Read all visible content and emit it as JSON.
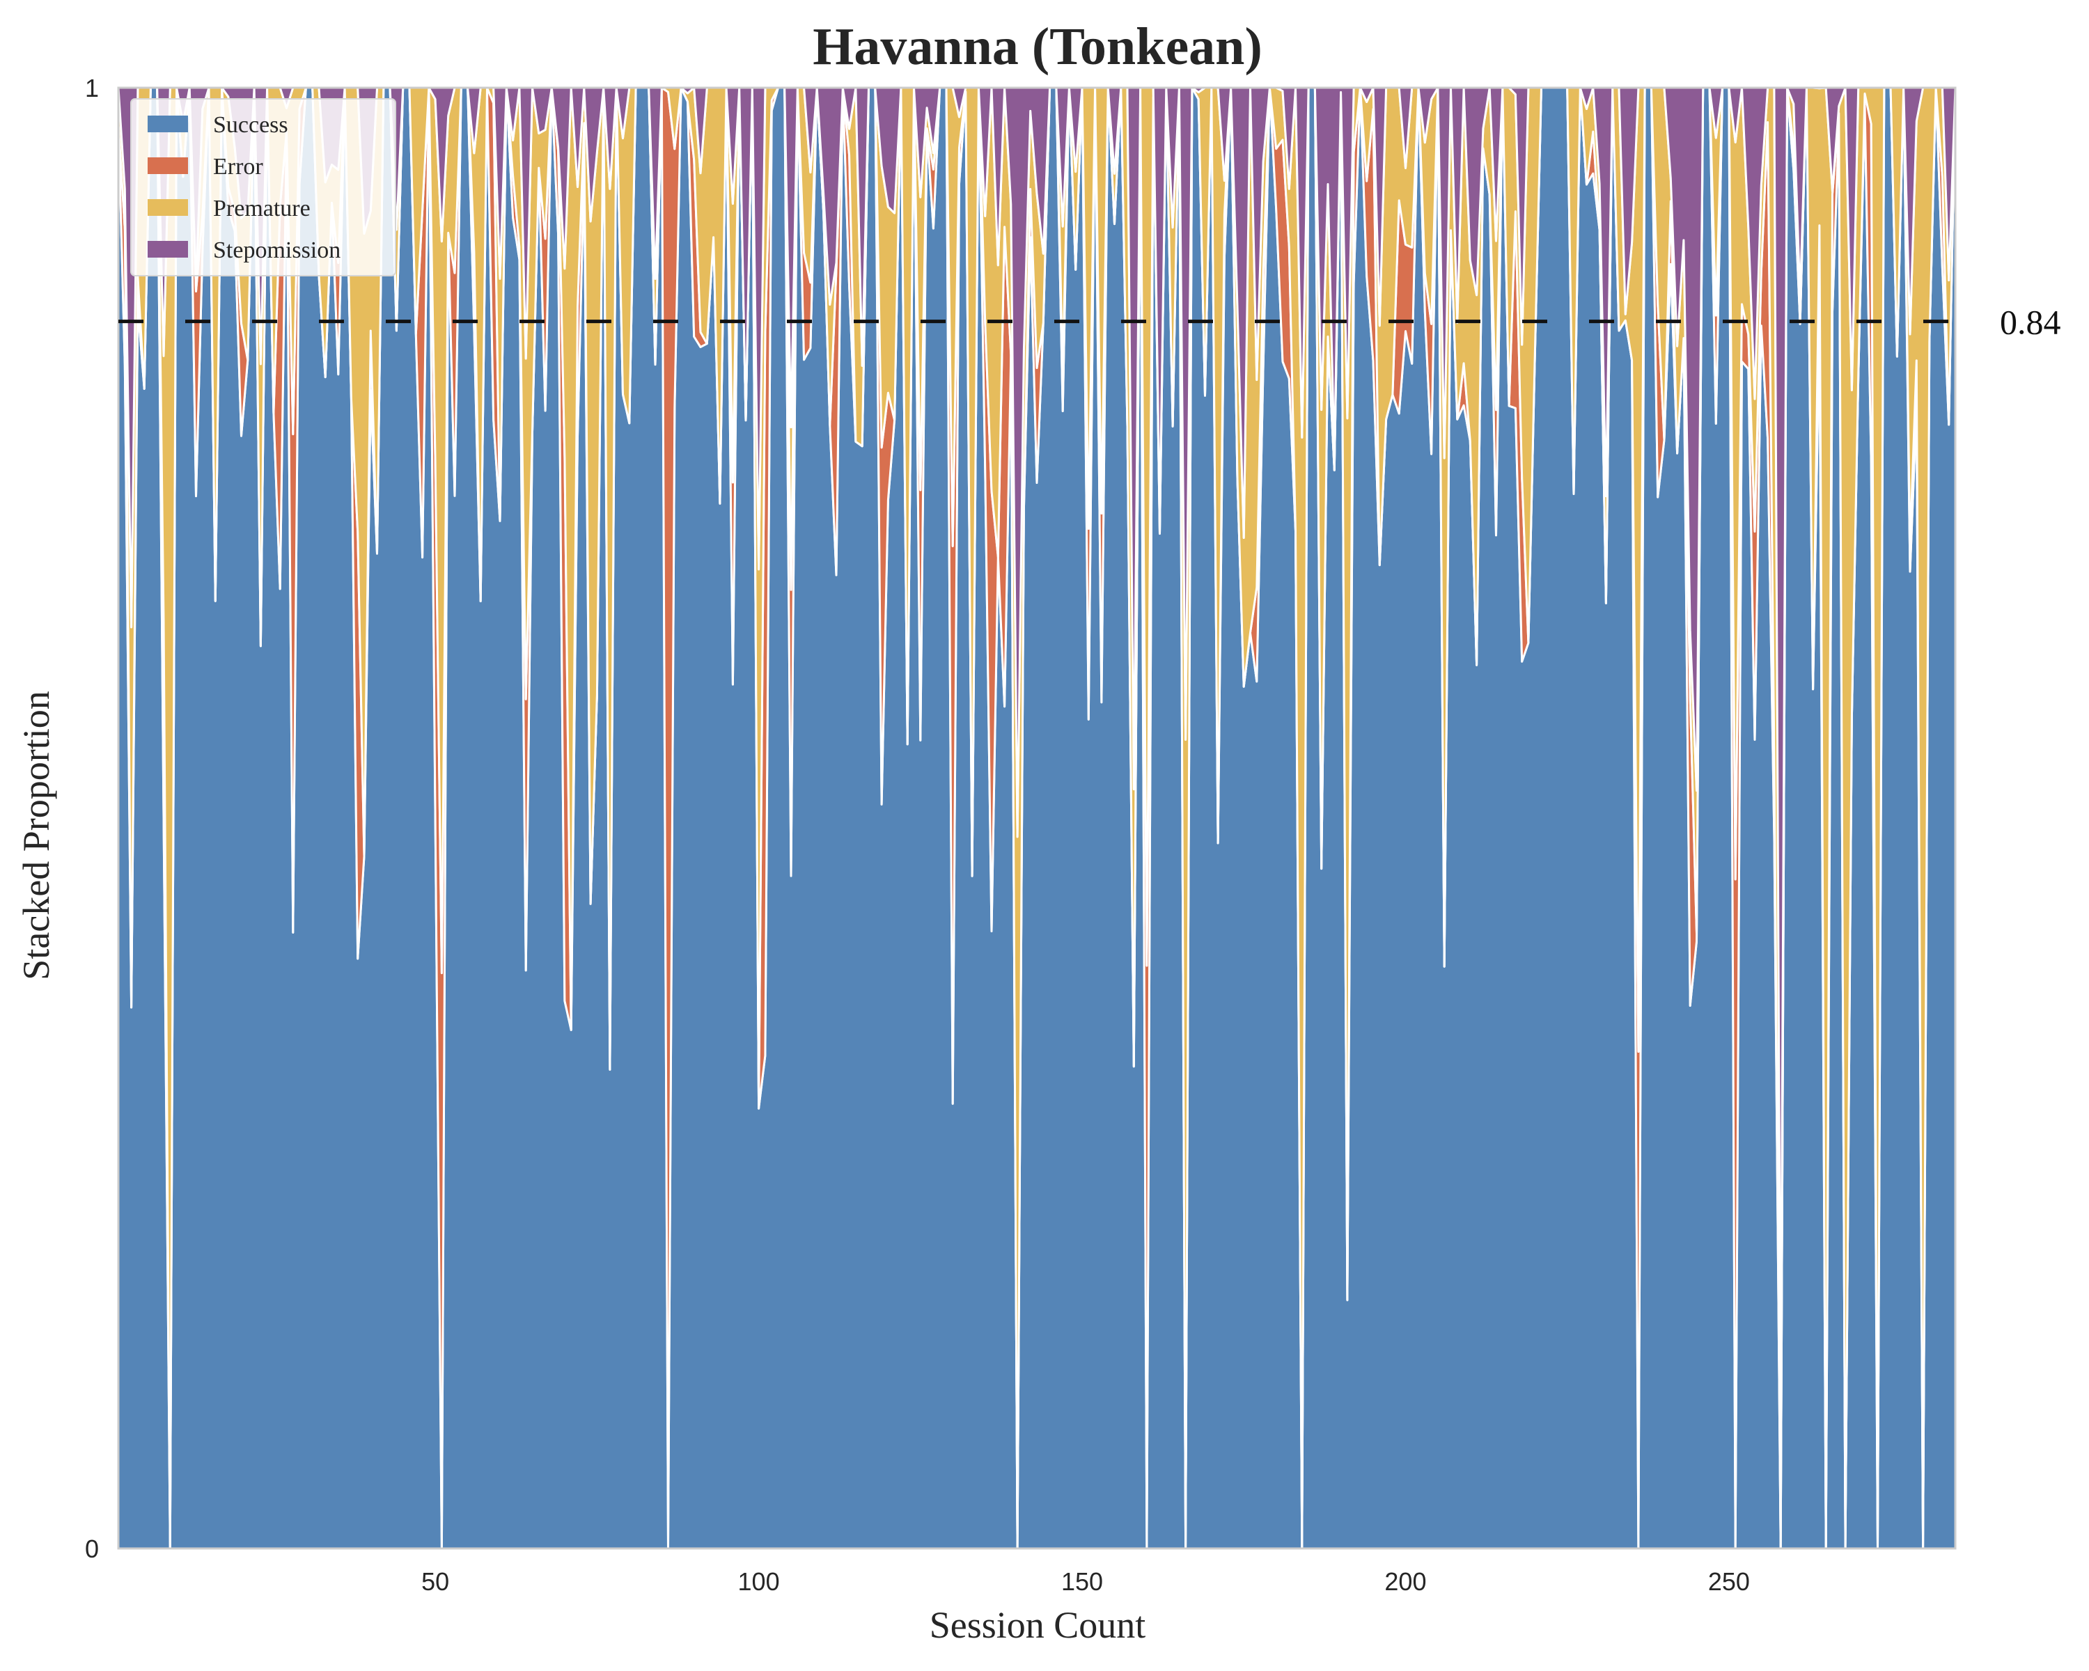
{
  "chart_data": {
    "type": "area",
    "title": "Havanna (Tonkean)",
    "xlabel": "Session Count",
    "ylabel": "Stacked Proportion",
    "xlim": [
      1,
      285
    ],
    "ylim": [
      0,
      1
    ],
    "x_ticks": [
      50,
      100,
      150,
      200,
      250
    ],
    "y_ticks": [
      {
        "value": 0,
        "label": "0"
      },
      {
        "value": 1,
        "label": "1"
      }
    ],
    "grid": false,
    "legend_position": "top-left",
    "stacked": true,
    "series": [
      {
        "name": "Success",
        "color": "#5585b7"
      },
      {
        "name": "Error",
        "color": "#d8704f"
      },
      {
        "name": "Premature",
        "color": "#e6bc5c"
      },
      {
        "name": "Stepomission",
        "color": "#8c5b94"
      }
    ],
    "reference_line": {
      "y": 0.84,
      "label": "0.84",
      "style": "dashed",
      "color": "#111111"
    },
    "key_points": [
      {
        "x": 8,
        "Success": 0.5
      },
      {
        "x": 9,
        "Success": 0.0
      },
      {
        "x": 50,
        "Success": 0.5
      },
      {
        "x": 51,
        "Success": 0.0
      },
      {
        "x": 86,
        "Success": 0.0
      },
      {
        "x": 140,
        "Success": 0.0
      },
      {
        "x": 158,
        "Success": 0.33
      },
      {
        "x": 160,
        "Success": 0.0
      },
      {
        "x": 166,
        "Success": 0.0
      },
      {
        "x": 184,
        "Success": 0.0
      },
      {
        "x": 191,
        "Success": 0.17
      },
      {
        "x": 236,
        "Success": 0.0
      },
      {
        "x": 251,
        "Success": 0.0
      },
      {
        "x": 258,
        "Success": 0.0
      },
      {
        "x": 265,
        "Success": 0.0
      },
      {
        "x": 268,
        "Success": 0.0
      },
      {
        "x": 273,
        "Success": 0.0
      },
      {
        "x": 280,
        "Success": 0.0
      },
      {
        "x": 285,
        "Success": 1.0
      }
    ]
  }
}
